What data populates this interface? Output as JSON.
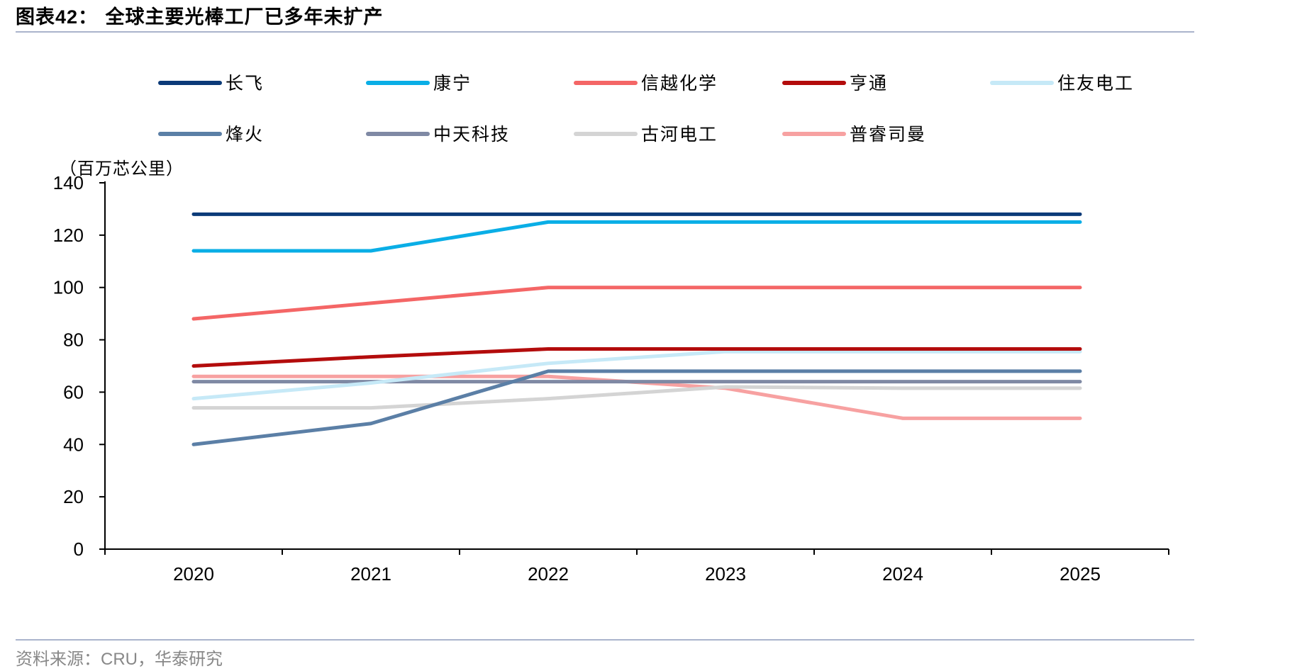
{
  "header": {
    "label": "图表",
    "number": "42：",
    "text": "全球主要光棒工厂已多年未扩产"
  },
  "footer": {
    "prefix": "资料来源：",
    "latin": "CRU，",
    "suffix": "华泰研究"
  },
  "chart_data": {
    "type": "line",
    "title": "全球主要光棒工厂已多年未扩产",
    "ylabel": "（百万芯公里）",
    "xlabel": "",
    "categories": [
      "2020",
      "2021",
      "2022",
      "2023",
      "2024",
      "2025"
    ],
    "ylim": [
      0,
      140
    ],
    "yticks": [
      "0",
      "20",
      "40",
      "60",
      "80",
      "100",
      "120",
      "140"
    ],
    "grid": false,
    "legend_position": "top",
    "series": [
      {
        "name": "长飞",
        "color": "#0b3a78",
        "values": [
          128,
          128,
          128,
          128,
          128,
          128
        ]
      },
      {
        "name": "康宁",
        "color": "#0aaee6",
        "values": [
          114,
          114,
          125,
          125,
          125,
          125
        ]
      },
      {
        "name": "信越化学",
        "color": "#f46666",
        "values": [
          88,
          94,
          100,
          100,
          100,
          100
        ]
      },
      {
        "name": "亨通",
        "color": "#b30c0c",
        "values": [
          70,
          73.5,
          76.5,
          76.5,
          76.5,
          76.5
        ]
      },
      {
        "name": "住友电工",
        "color": "#c6e9f7",
        "values": [
          57.5,
          63.5,
          71,
          75.5,
          75.5,
          75.5
        ]
      },
      {
        "name": "烽火",
        "color": "#5b7fa6",
        "values": [
          40,
          48,
          68,
          68,
          68,
          68
        ]
      },
      {
        "name": "中天科技",
        "color": "#7f89a4",
        "values": [
          64,
          64,
          64,
          64,
          64,
          64
        ]
      },
      {
        "name": "古河电工",
        "color": "#d4d4d4",
        "values": [
          54,
          54,
          57.5,
          62,
          61.5,
          61.5
        ]
      },
      {
        "name": "普睿司曼",
        "color": "#f7a1a1",
        "values": [
          66,
          66,
          66,
          61.5,
          50,
          50
        ]
      }
    ]
  }
}
